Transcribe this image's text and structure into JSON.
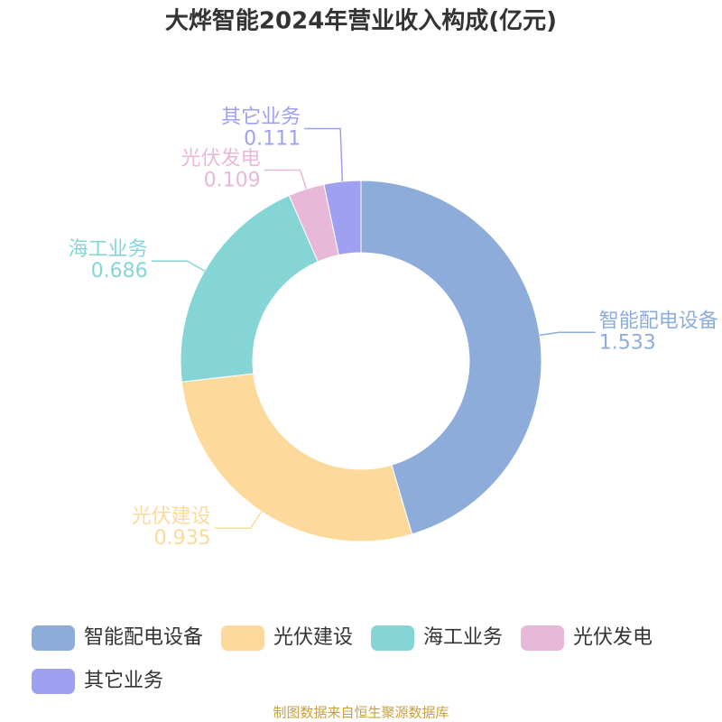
{
  "chart_data": {
    "type": "donut",
    "title": "大烨智能2024年营业收入构成(亿元)",
    "categories": [
      "智能配电设备",
      "光伏建设",
      "海工业务",
      "光伏发电",
      "其它业务"
    ],
    "values": [
      1.533,
      0.935,
      0.686,
      0.109,
      0.111
    ],
    "colors": [
      "#8eacd9",
      "#fdd99b",
      "#86d5d6",
      "#e8b8d8",
      "#a0a0f2"
    ],
    "source": "制图数据来自恒生聚源数据库"
  }
}
